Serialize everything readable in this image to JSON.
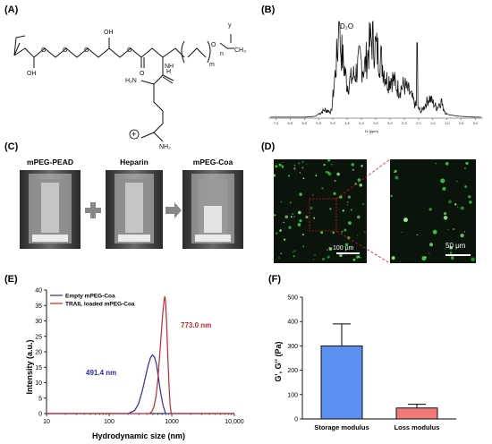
{
  "panels": {
    "A": {
      "label": "(A)",
      "structure_labels": {
        "m": "m",
        "n": "n",
        "y": "y",
        "oh1": "OH",
        "oh2": "OH",
        "h2n": "H₂N",
        "nh": "NH",
        "nh2": "NH₂",
        "o1": "O",
        "o2": "O",
        "o3": "O",
        "o4": "O",
        "o5": "O",
        "o6": "O",
        "ch3": "CH₃",
        "h": "H",
        "plus": "+"
      }
    },
    "B": {
      "label": "(B)",
      "peak_label": "D₂O",
      "xaxis_label": "f1 (ppm)",
      "ticks": [
        "7.0",
        "6.5",
        "6.0",
        "5.5",
        "5.0",
        "4.5",
        "4.0",
        "3.5",
        "3.0",
        "2.5",
        "2.0",
        "1.5",
        "1.0",
        "0.5",
        "0.0"
      ]
    },
    "C": {
      "label": "(C)",
      "captions": [
        "mPEG-PEAD",
        "Heparin",
        "mPEG-Coa"
      ]
    },
    "D": {
      "label": "(D)",
      "scalebar_left": "100 μm",
      "scalebar_right": "50 μm"
    },
    "E": {
      "label": "(E)",
      "ylabel": "Intensity (a.u.)",
      "xlabel": "Hydrodynamic size (nm)",
      "annot_red": "773.0 nm",
      "annot_blue": "491.4 nm"
    },
    "F": {
      "label": "(F)",
      "ylabel": "G', G'' (Pa)",
      "categories": [
        "Storage modulus",
        "Loss modulus"
      ]
    }
  },
  "chart_data": [
    {
      "type": "line",
      "panel": "E",
      "xlabel": "Hydrodynamic size (nm)",
      "ylabel": "Intensity (a.u.)",
      "xscale": "log",
      "xlim": [
        10,
        10000
      ],
      "ylim": [
        0,
        40
      ],
      "xticks": [
        "10",
        "100",
        "1000",
        "10,000"
      ],
      "yticks": [
        "0",
        "5",
        "10",
        "15",
        "20",
        "25",
        "30",
        "35",
        "40"
      ],
      "legend_placement": "top-left",
      "series": [
        {
          "name": "Empty mPEG-Coa",
          "color": "#2b2ba8",
          "x": [
            200,
            255,
            295,
            340,
            380,
            420,
            455,
            491.4,
            530,
            570,
            615,
            650,
            690,
            730,
            775,
            800
          ],
          "y": [
            0,
            1.0,
            3.2,
            7.5,
            11.8,
            15.6,
            18.0,
            19.0,
            18.3,
            16.0,
            11.5,
            8.0,
            5.0,
            2.5,
            0.8,
            0
          ]
        },
        {
          "name": "TRAIL loaded mPEG-Coa",
          "color": "#c0282d",
          "x": [
            440,
            480,
            520,
            560,
            600,
            640,
            680,
            720,
            750,
            773,
            800,
            830,
            860,
            900,
            940,
            980
          ],
          "y": [
            0,
            0.6,
            2.2,
            5.5,
            11.0,
            18.5,
            26.0,
            32.5,
            36.2,
            38.0,
            36.0,
            29.0,
            20.0,
            10.0,
            3.0,
            0
          ]
        }
      ]
    },
    {
      "type": "bar",
      "panel": "F",
      "ylabel": "G', G'' (Pa)",
      "categories": [
        "Storage modulus",
        "Loss modulus"
      ],
      "values": [
        300,
        45
      ],
      "errors": [
        90,
        15
      ],
      "colors": [
        "#5b8ff0",
        "#f07a7a"
      ],
      "ylim": [
        0,
        500
      ],
      "yticks": [
        "0",
        "100",
        "200",
        "300",
        "400",
        "500"
      ]
    },
    {
      "type": "line",
      "panel": "B",
      "title": "",
      "xlabel": "f1 (ppm)",
      "xlim": [
        7.2,
        -0.2
      ],
      "x": [
        7.0,
        6.5,
        6.0,
        5.6,
        5.3,
        5.05,
        4.79,
        4.5,
        4.2,
        4.05,
        3.9,
        3.7,
        3.62,
        3.5,
        3.3,
        3.1,
        2.95,
        2.7,
        2.5,
        2.3,
        2.1,
        1.9,
        1.62,
        1.35,
        1.25,
        1.0,
        0.6,
        0.0
      ],
      "y": [
        0.01,
        0.01,
        0.01,
        0.02,
        0.1,
        0.08,
        1.0,
        0.4,
        0.55,
        0.7,
        0.6,
        0.9,
        0.98,
        0.85,
        0.7,
        0.45,
        0.5,
        0.35,
        0.4,
        0.3,
        0.15,
        0.08,
        0.25,
        0.12,
        0.2,
        0.04,
        0.02,
        0.01
      ]
    }
  ]
}
